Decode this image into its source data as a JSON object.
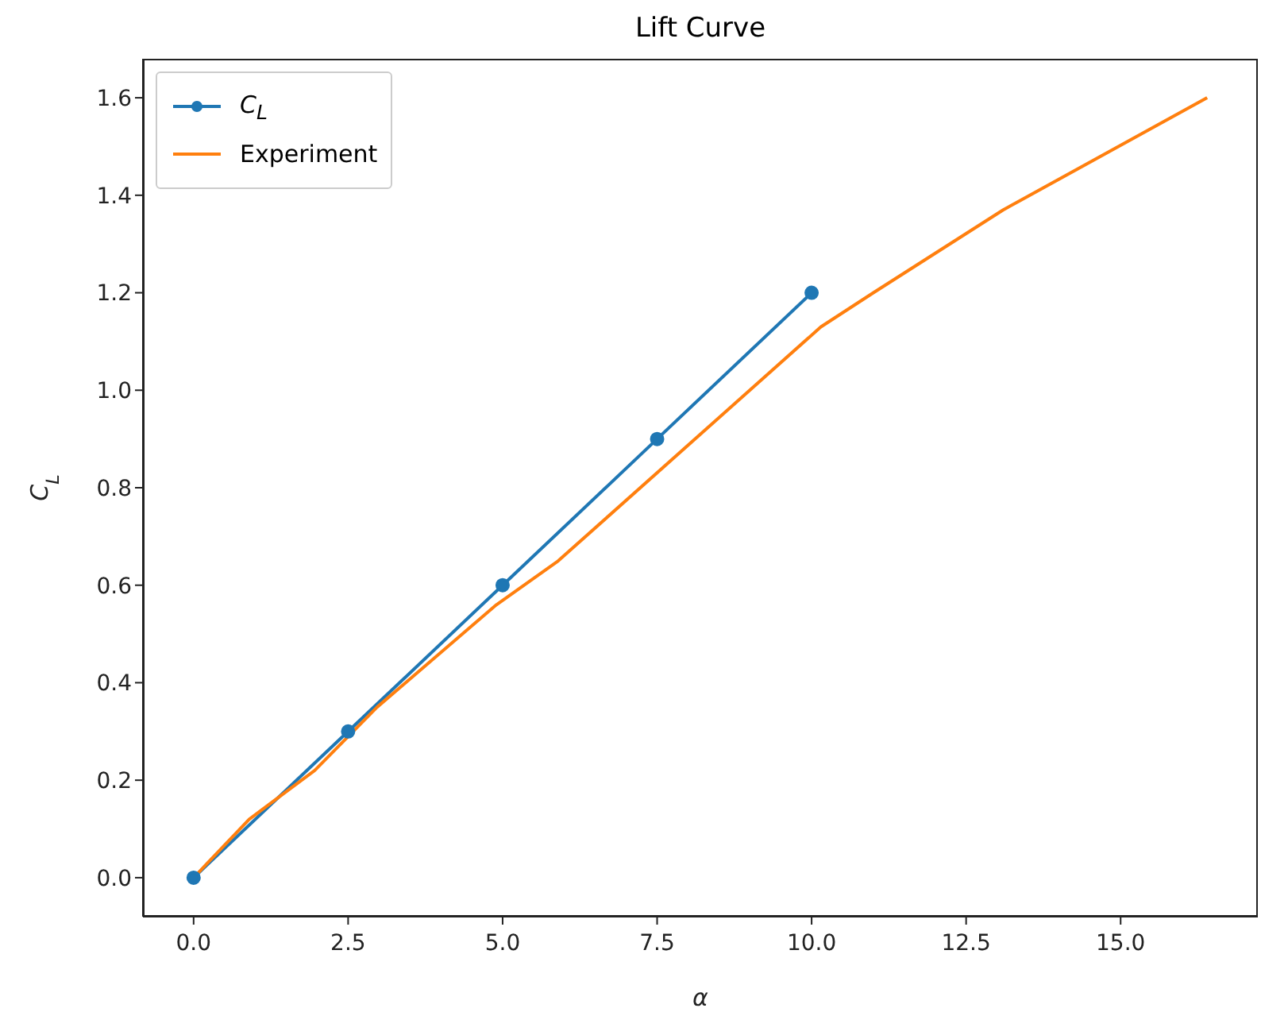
{
  "chart_data": {
    "type": "line",
    "title": "Lift Curve",
    "xlabel": "α",
    "ylabel": "C$_{L}$",
    "xlim": [
      -0.82,
      17.22
    ],
    "xticks": [
      {
        "value": 0,
        "label": "0.0"
      },
      {
        "value": 2.5,
        "label": "2.5"
      },
      {
        "value": 5,
        "label": "5.0"
      },
      {
        "value": 7.5,
        "label": "7.5"
      },
      {
        "value": 10,
        "label": "10.0"
      },
      {
        "value": 12.5,
        "label": "12.5"
      },
      {
        "value": 15,
        "label": "15.0"
      }
    ],
    "ylim": [
      -0.08,
      1.68
    ],
    "yticks": [
      {
        "value": 0,
        "label": "0.0"
      },
      {
        "value": 0.2,
        "label": "0.2"
      },
      {
        "value": 0.4,
        "label": "0.4"
      },
      {
        "value": 0.6,
        "label": "0.6"
      },
      {
        "value": 0.8,
        "label": "0.8"
      },
      {
        "value": 1.0,
        "label": "1.0"
      },
      {
        "value": 1.2,
        "label": "1.2"
      },
      {
        "value": 1.4,
        "label": "1.4"
      },
      {
        "value": 1.6,
        "label": "1.6"
      }
    ],
    "grid": false,
    "legend": "top left",
    "line_style": "solid",
    "series": [
      {
        "name": "C$_{L}$",
        "color": "#1f77b4",
        "marker": "circle",
        "x": [
          0,
          2.5,
          5,
          7.5,
          10
        ],
        "values": [
          0,
          0.3,
          0.6,
          0.9,
          1.2
        ]
      },
      {
        "name": "Experiment",
        "color": "#ff7f0e",
        "marker": "none",
        "x": [
          0,
          0.9,
          1.96,
          2.97,
          4.9,
          5.9,
          10.15,
          11.0,
          13.1,
          16.4
        ],
        "values": [
          0,
          0.12,
          0.22,
          0.35,
          0.56,
          0.65,
          1.13,
          1.2,
          1.37,
          1.6
        ]
      }
    ]
  }
}
